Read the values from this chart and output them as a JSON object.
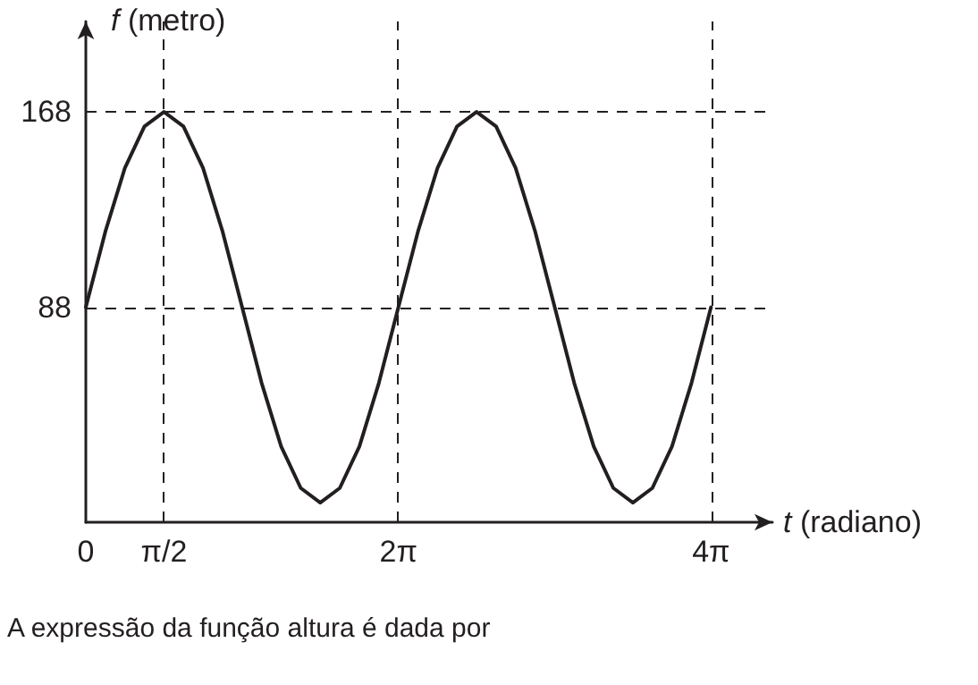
{
  "chart_data": {
    "type": "line",
    "xlabel": "t (radiano)",
    "ylabel": "f (metro)",
    "annotations": [
      "A expressão da função altura é dada por"
    ],
    "x": [
      0,
      0.393,
      0.785,
      1.178,
      1.571,
      1.963,
      2.356,
      2.749,
      3.142,
      3.534,
      3.927,
      4.32,
      4.712,
      5.105,
      5.498,
      5.89,
      6.283,
      6.676,
      7.069,
      7.461,
      7.854,
      8.247,
      8.639,
      9.032,
      9.425,
      9.817,
      10.21,
      10.603,
      10.996,
      11.388,
      11.781,
      12.174,
      12.566
    ],
    "series": [
      {
        "color": "#231f20",
        "values": [
          88,
          119,
          145,
          162,
          168,
          162,
          145,
          119,
          88,
          57,
          31,
          14,
          8,
          14,
          31,
          57,
          88,
          119,
          145,
          162,
          168,
          162,
          145,
          119,
          88,
          57,
          31,
          14,
          8,
          14,
          31,
          57,
          88
        ]
      }
    ],
    "xlim": [
      0,
      13.8
    ],
    "ylim": [
      0,
      205
    ],
    "xticks": [
      {
        "value": 0,
        "label": "0"
      },
      {
        "value": 1.571,
        "label": "π/2"
      },
      {
        "value": 6.283,
        "label": "2π"
      },
      {
        "value": 12.566,
        "label": "4π"
      }
    ],
    "yticks": [
      88,
      168
    ],
    "ref_lines": [
      {
        "axis": "y",
        "value": 168,
        "line_style": "dashed"
      },
      {
        "axis": "y",
        "value": 88,
        "line_style": "dashed"
      },
      {
        "axis": "x",
        "value": 1.571,
        "line_style": "dashed"
      },
      {
        "axis": "x",
        "value": 6.283,
        "line_style": "dashed"
      },
      {
        "axis": "x",
        "value": 12.566,
        "line_style": "dashed"
      }
    ],
    "grid": false,
    "marker": "none",
    "line_style": "solid"
  }
}
